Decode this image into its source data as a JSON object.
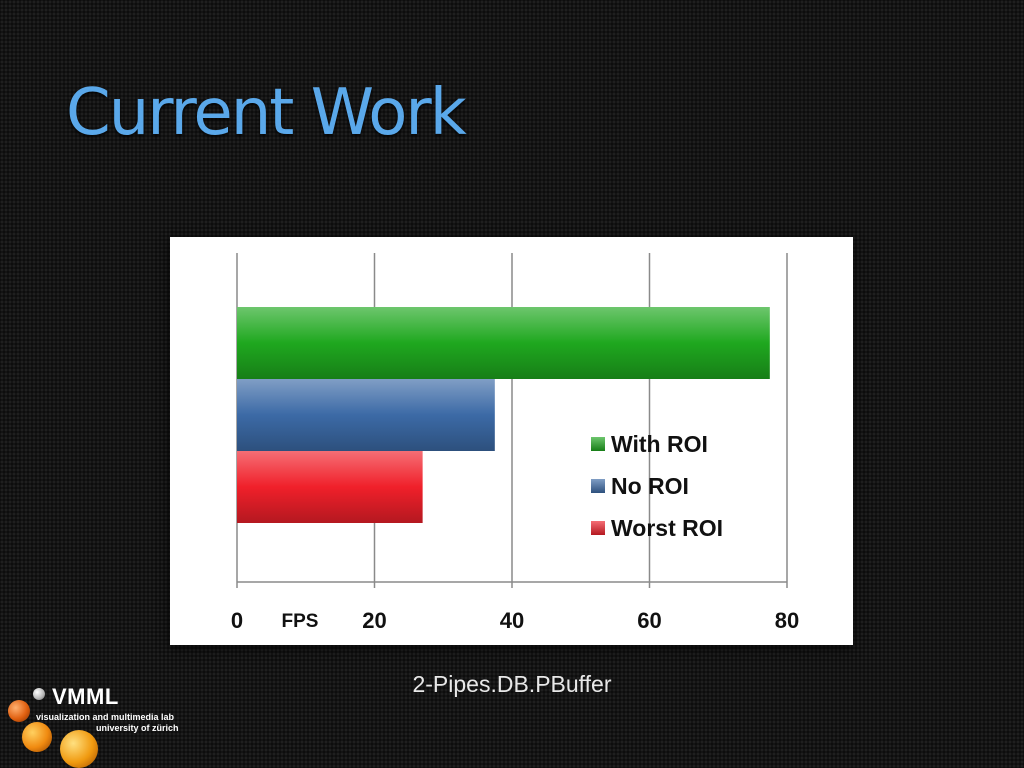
{
  "slide": {
    "title": "Current Work",
    "caption": "2-Pipes.DB.PBuffer"
  },
  "logo": {
    "name": "VMML",
    "subtitle_line1": "visualization and multimedia lab",
    "subtitle_line2": "university of zürich"
  },
  "chart_data": {
    "type": "bar",
    "orientation": "horizontal",
    "title": "",
    "xlabel": "FPS",
    "ylabel": "",
    "xlim": [
      0,
      80
    ],
    "x_ticks": [
      0,
      20,
      40,
      60,
      80
    ],
    "grid": "vertical",
    "legend_position": "right",
    "series": [
      {
        "name": "With ROI",
        "value": 77.5,
        "color": "#1fa81f"
      },
      {
        "name": "No ROI",
        "value": 37.5,
        "color": "#3c6aa6"
      },
      {
        "name": "Worst ROI",
        "value": 27,
        "color": "#f0202a"
      }
    ]
  }
}
